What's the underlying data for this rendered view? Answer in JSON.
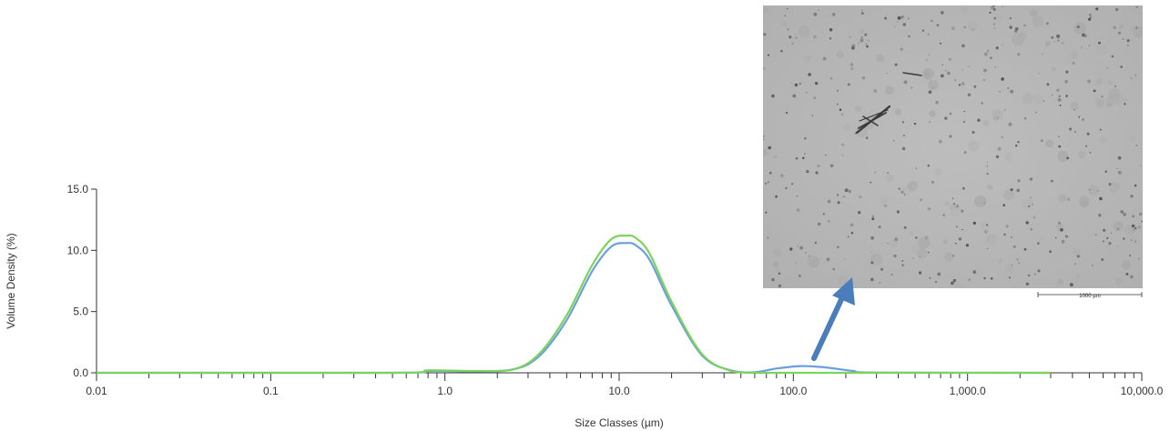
{
  "chart_data": {
    "type": "line",
    "title": "",
    "xlabel": "Size Classes (µm)",
    "ylabel": "Volume Density (%)",
    "x_scale": "log",
    "xlim": [
      0.01,
      10000
    ],
    "ylim": [
      0,
      15
    ],
    "x_ticks": [
      {
        "value": 0.01,
        "label": "0.01"
      },
      {
        "value": 0.1,
        "label": "0.1"
      },
      {
        "value": 1,
        "label": "1.0"
      },
      {
        "value": 10,
        "label": "10.0"
      },
      {
        "value": 100,
        "label": "100.0"
      },
      {
        "value": 1000,
        "label": "1,000.0"
      },
      {
        "value": 10000,
        "label": "10,000.0"
      }
    ],
    "y_ticks": [
      {
        "value": 0,
        "label": "0.0"
      },
      {
        "value": 5,
        "label": "5.0"
      },
      {
        "value": 10,
        "label": "10.0"
      },
      {
        "value": 15,
        "label": "15.0"
      }
    ],
    "grid": false,
    "legend": "none",
    "series": [
      {
        "color": "#6a9ee0",
        "x": [
          0.01,
          0.5,
          0.8,
          1.5,
          2.5,
          3.5,
          5,
          7,
          9,
          11,
          12.5,
          15,
          20,
          30,
          45,
          60,
          80,
          110,
          150,
          220,
          300,
          3000
        ],
        "y": [
          0,
          0,
          0.15,
          0.12,
          0.3,
          1.4,
          4.3,
          8.3,
          10.3,
          10.6,
          10.4,
          9.2,
          5.5,
          1.4,
          0.15,
          0.05,
          0.35,
          0.55,
          0.45,
          0.15,
          0.02,
          0
        ]
      },
      {
        "color": "#7ad35a",
        "x": [
          0.01,
          0.5,
          0.8,
          1.5,
          2.5,
          3.5,
          5,
          7,
          9,
          11,
          12.5,
          15,
          20,
          30,
          45,
          60,
          80,
          110,
          150,
          220,
          300,
          3000
        ],
        "y": [
          0,
          0,
          0.2,
          0.15,
          0.3,
          1.6,
          4.7,
          8.8,
          10.9,
          11.2,
          11.0,
          9.7,
          5.8,
          1.5,
          0.1,
          0,
          0,
          0,
          0,
          0,
          0,
          0
        ]
      }
    ],
    "annotations": {
      "inset_image": {
        "scale_bar_label": "1000 µm",
        "arrow_color": "#4a7ebb",
        "background": "#b8b8b8"
      }
    }
  }
}
